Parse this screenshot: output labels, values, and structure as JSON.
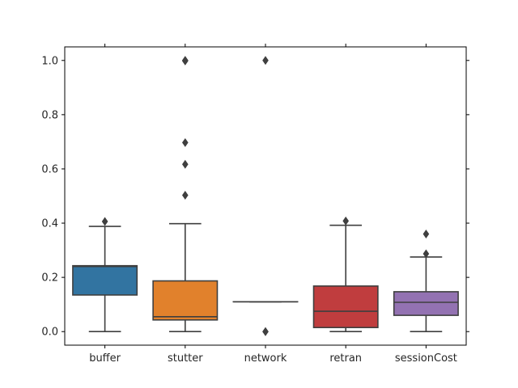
{
  "chart_data": {
    "type": "boxplot",
    "title": "",
    "xlabel": "",
    "ylabel": "",
    "ylim": [
      -0.05,
      1.05
    ],
    "yticks": [
      0.0,
      0.2,
      0.4,
      0.6,
      0.8,
      1.0
    ],
    "ytick_labels": [
      "0.0",
      "0.2",
      "0.4",
      "0.6",
      "0.8",
      "1.0"
    ],
    "grid": false,
    "categories": [
      "buffer",
      "stutter",
      "network",
      "retran",
      "sessionCost"
    ],
    "boxes": [
      {
        "name": "buffer",
        "color": "#3274a1",
        "whisker_low": 0.0,
        "q1": 0.135,
        "median": 0.24,
        "q3": 0.243,
        "whisker_high": 0.388,
        "outliers": [
          0.406
        ]
      },
      {
        "name": "stutter",
        "color": "#e1812c",
        "whisker_low": 0.0,
        "q1": 0.043,
        "median": 0.055,
        "q3": 0.187,
        "whisker_high": 0.398,
        "outliers": [
          0.503,
          0.617,
          0.697,
          0.998,
          1.0,
          1.0
        ]
      },
      {
        "name": "network",
        "color": "#3a923a",
        "whisker_low": 0.11,
        "q1": 0.11,
        "median": 0.11,
        "q3": 0.11,
        "whisker_high": 0.11,
        "outliers": [
          0.0,
          0.0,
          1.0
        ]
      },
      {
        "name": "retran",
        "color": "#c03d3e",
        "whisker_low": 0.0,
        "q1": 0.015,
        "median": 0.075,
        "q3": 0.168,
        "whisker_high": 0.392,
        "outliers": [
          0.408
        ]
      },
      {
        "name": "sessionCost",
        "color": "#9372b2",
        "whisker_low": 0.0,
        "q1": 0.06,
        "median": 0.108,
        "q3": 0.147,
        "whisker_high": 0.275,
        "outliers": [
          0.287,
          0.36
        ]
      }
    ]
  }
}
